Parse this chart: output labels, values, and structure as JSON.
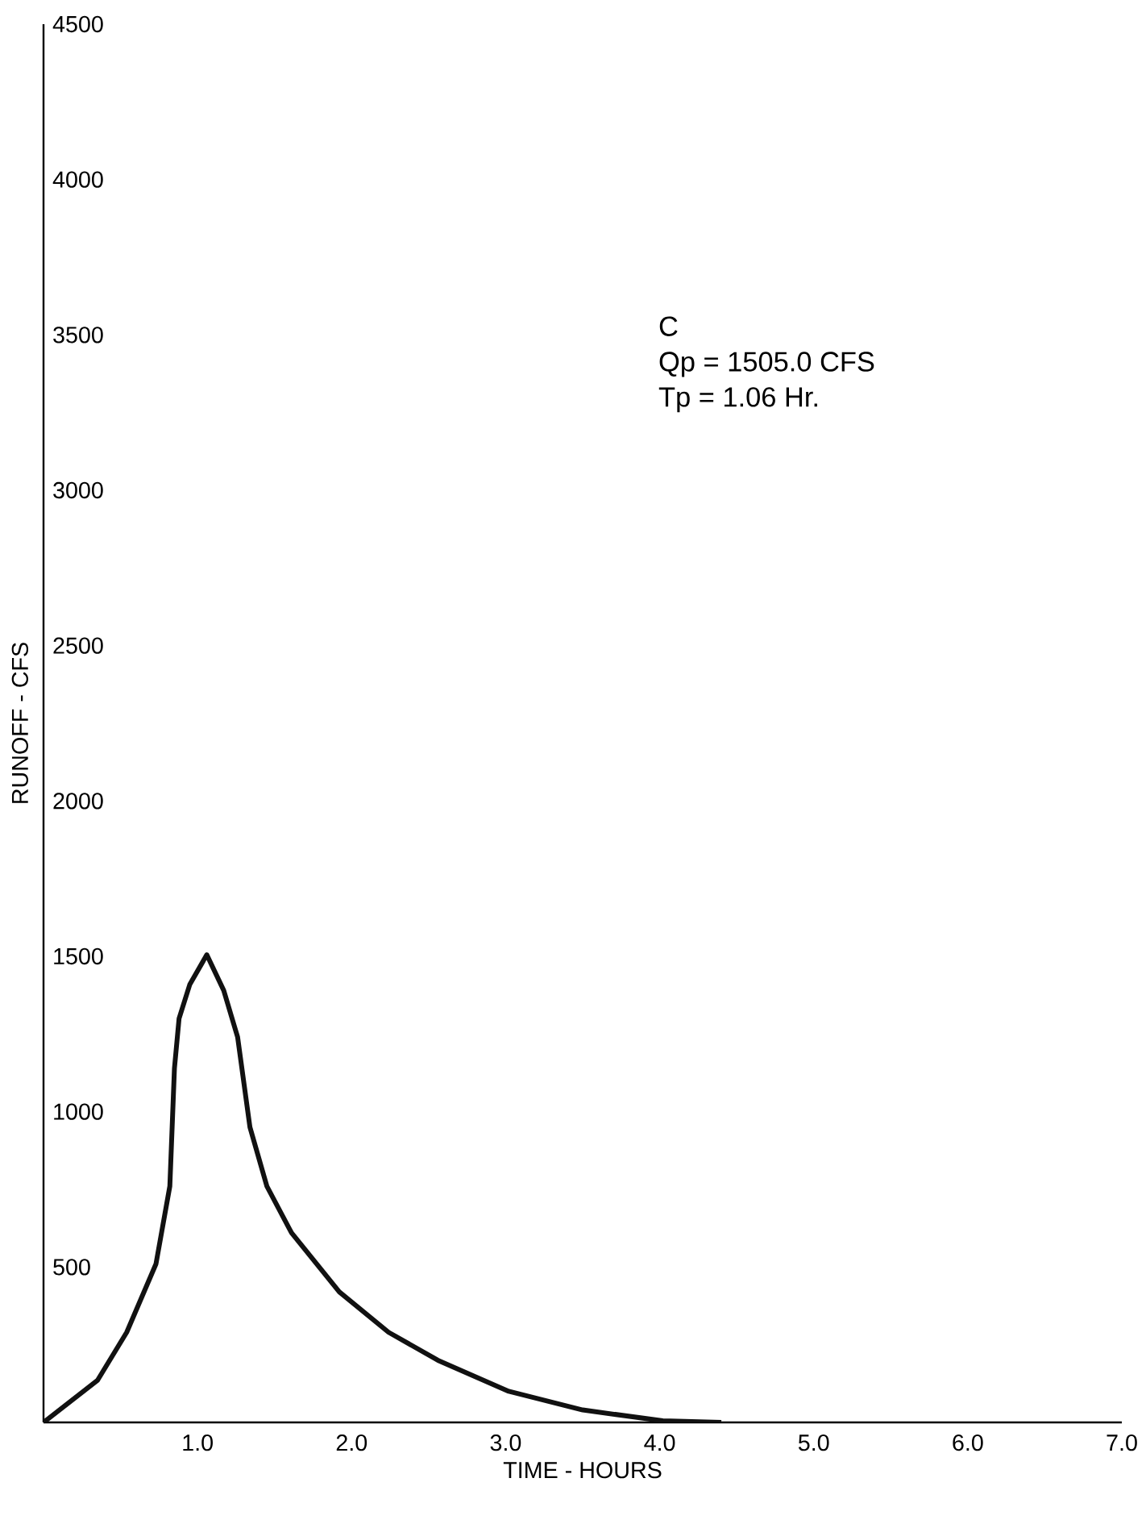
{
  "chart_data": {
    "type": "line",
    "xlabel": "TIME - HOURS",
    "ylabel": "RUNOFF - CFS",
    "annotations": [
      "C",
      "Qp = 1505.0 CFS",
      "Tp = 1.06 Hr."
    ],
    "x": [
      0,
      0.35,
      0.54,
      0.73,
      0.82,
      0.85,
      0.88,
      0.95,
      1.06,
      1.17,
      1.26,
      1.34,
      1.45,
      1.61,
      1.92,
      2.24,
      2.56,
      3.02,
      3.5,
      4.02,
      4.4
    ],
    "series": [
      {
        "color": "#111111",
        "values": [
          0,
          135,
          290,
          510,
          760,
          1140,
          1300,
          1410,
          1505,
          1390,
          1240,
          950,
          760,
          610,
          420,
          290,
          200,
          100,
          40,
          5,
          0
        ]
      }
    ],
    "xlim": [
      0,
      7
    ],
    "ylim": [
      0,
      4500
    ],
    "xticks": [
      {
        "value": 1,
        "label": "1.0"
      },
      {
        "value": 2,
        "label": "2.0"
      },
      {
        "value": 3,
        "label": "3.0"
      },
      {
        "value": 4,
        "label": "4.0"
      },
      {
        "value": 5,
        "label": "5.0"
      },
      {
        "value": 6,
        "label": "6.0"
      },
      {
        "value": 7,
        "label": "7.0"
      }
    ],
    "yticks": [
      500,
      1000,
      1500,
      2000,
      2500,
      3000,
      3500,
      4000,
      4500
    ],
    "grid": false,
    "marker": "none",
    "line_style": "solid"
  }
}
